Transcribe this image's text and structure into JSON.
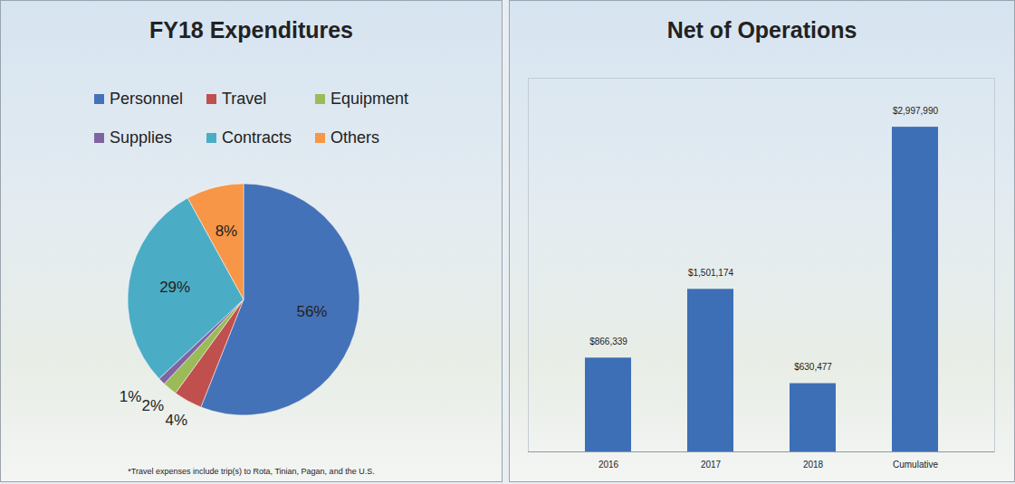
{
  "chart_data": [
    {
      "type": "pie",
      "title": "FY18 Expenditures",
      "categories": [
        "Personnel",
        "Travel",
        "Equipment",
        "Supplies",
        "Contracts",
        "Others"
      ],
      "values": [
        56,
        4,
        2,
        1,
        29,
        8
      ],
      "value_labels": [
        "56%",
        "4%",
        "2%",
        "1%",
        "29%",
        "8%"
      ],
      "colors": [
        "#4472b8",
        "#c0504d",
        "#9bbb59",
        "#8064a2",
        "#4bacc6",
        "#f79646"
      ],
      "data_labels": true,
      "legend": "top",
      "annotations": [
        "*Travel expenses include trip(s) to Rota, Tinian, Pagan, and the U.S."
      ]
    },
    {
      "type": "bar",
      "title": "Net of Operations",
      "categories": [
        "2016",
        "2017",
        "2018",
        "Cumulative"
      ],
      "values": [
        866339,
        1501174,
        630477,
        2997990
      ],
      "value_labels": [
        "$866,339",
        "$1,501,174",
        "$630,477",
        "$2,997,990"
      ],
      "color": "#3d6fb6",
      "ylim": [
        0,
        3450000
      ],
      "data_labels": true,
      "tick_labels": "x"
    }
  ]
}
